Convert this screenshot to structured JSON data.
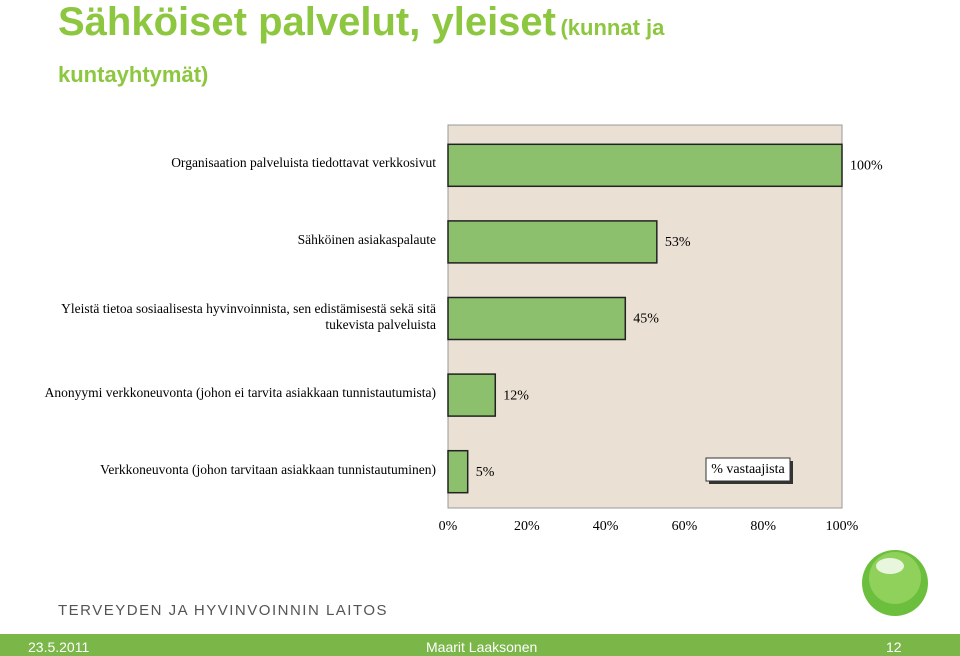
{
  "header": {
    "title": "Sähköiset palvelut, yleiset",
    "subtitle": "(kunnat ja kuntayhtymät)"
  },
  "chart_data": {
    "type": "bar",
    "orientation": "horizontal",
    "categories": [
      "Organisaation palveluista tiedottavat verkkosivut",
      "Sähköinen asiakaspalaute",
      "Yleistä tietoa sosiaalisesta hyvinvoinnista, sen edistämisestä sekä sitä tukevista palveluista",
      "Anonyymi verkkoneuvonta (johon ei tarvita asiakkaan tunnistautumista)",
      "Verkkoneuvonta (johon tarvitaan asiakkaan tunnistautuminen)"
    ],
    "series": [
      {
        "name": "% vastaajista",
        "color": "#8cc06c",
        "values": [
          100,
          53,
          45,
          12,
          5
        ],
        "value_labels": [
          "100%",
          "53%",
          "45%",
          "12%",
          "5%"
        ]
      }
    ],
    "xlim": [
      0,
      100
    ],
    "xticks": [
      {
        "value": 0,
        "label": "0%"
      },
      {
        "value": 20,
        "label": "20%"
      },
      {
        "value": 40,
        "label": "40%"
      },
      {
        "value": 60,
        "label": "60%"
      },
      {
        "value": 80,
        "label": "80%"
      },
      {
        "value": 100,
        "label": "100%"
      }
    ],
    "legend": "right",
    "background": "#eae0d4"
  },
  "footer": {
    "organization": "TERVEYDEN JA HYVINVOINNIN LAITOS",
    "date": "23.5.2011",
    "author": "Maarit Laaksonen",
    "page": "12"
  }
}
